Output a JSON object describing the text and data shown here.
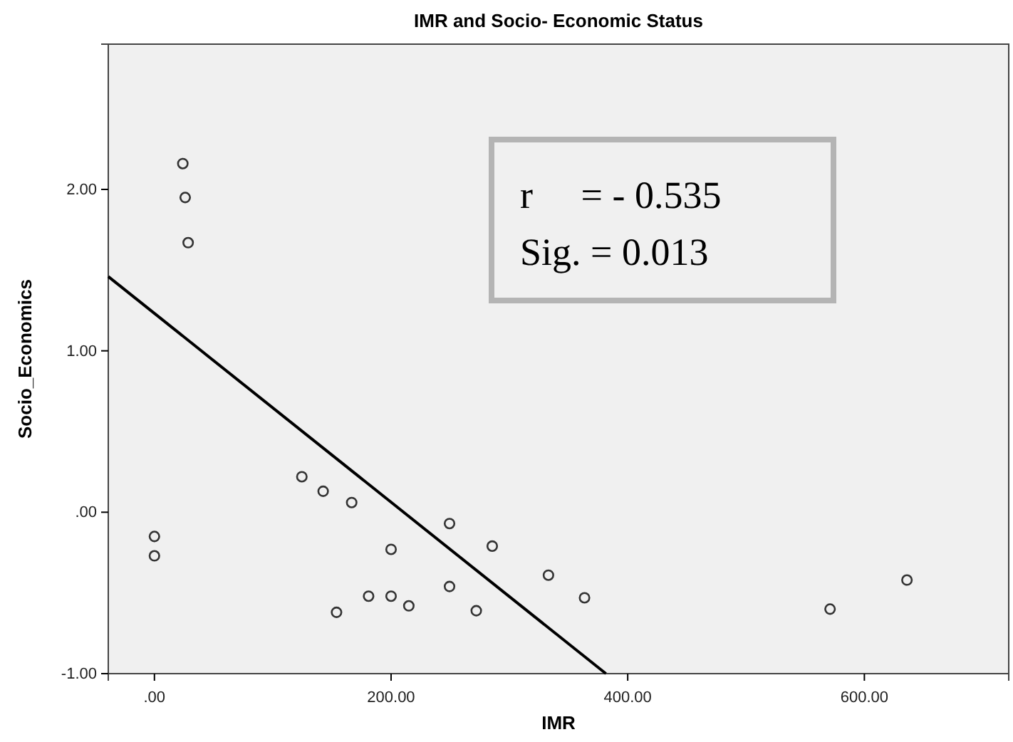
{
  "chart_data": {
    "type": "scatter",
    "title": "IMR and Socio- Economic Status",
    "xlabel": "IMR",
    "ylabel": "Socio_Economics",
    "xlim": [
      -39,
      722
    ],
    "ylim": [
      -1,
      2.9
    ],
    "xticks": [
      {
        "value": 0,
        "label": ".00"
      },
      {
        "value": 200,
        "label": "200.00"
      },
      {
        "value": 400,
        "label": "400.00"
      },
      {
        "value": 600,
        "label": "600.00"
      }
    ],
    "yticks": [
      {
        "value": -1,
        "label": "-1.00"
      },
      {
        "value": 0,
        "label": ".00"
      },
      {
        "value": 1,
        "label": "1.00"
      },
      {
        "value": 2,
        "label": "2.00"
      }
    ],
    "grid": false,
    "marker": "circle",
    "annotations": [
      "r     = - 0.535",
      "Sig. = 0.013"
    ],
    "series": [
      {
        "color": "#333333",
        "x": [
          24,
          26,
          28.5,
          0,
          0,
          124.6,
          142.6,
          166.7,
          249.4,
          200,
          285.5,
          333,
          181,
          200,
          215,
          153.9,
          249.4,
          272,
          363.5,
          571,
          636
        ],
        "values": [
          2.16,
          1.95,
          1.67,
          -0.15,
          -0.27,
          0.22,
          0.13,
          0.06,
          -0.07,
          -0.23,
          -0.21,
          -0.39,
          -0.52,
          -0.52,
          -0.58,
          -0.62,
          -0.46,
          -0.61,
          -0.53,
          -0.6,
          -0.42
        ]
      },
      {
        "type": "line",
        "color": "#000000",
        "marker": "none",
        "line_style": "solid",
        "x": [
          -39,
          381.6
        ],
        "values": [
          1.46,
          -1
        ]
      }
    ]
  }
}
